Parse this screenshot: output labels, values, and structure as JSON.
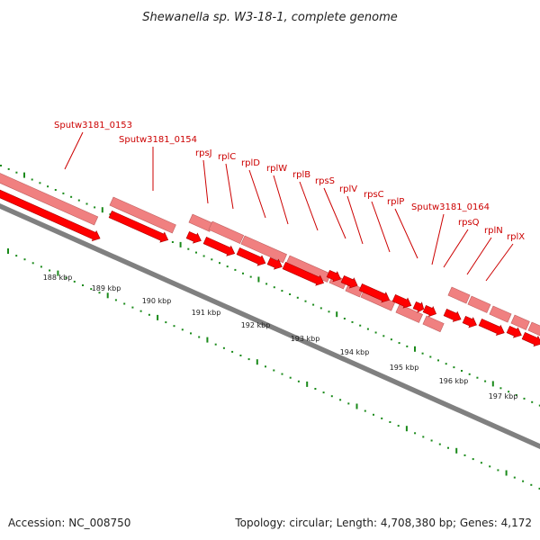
{
  "title": "Shewanella sp. W3-18-1, complete genome",
  "footer": {
    "accession": "Accession: NC_008750",
    "topology": "Topology: circular; Length: 4,708,380 bp; Genes: 4,172"
  },
  "colors": {
    "gene_fill": "#ff0000",
    "gene_edge": "#aa0000",
    "cds_fill": "#f08080",
    "cds_edge": "#c06060",
    "backbone": "#808080",
    "tick": "#1a8a1a",
    "label": "#cc0000"
  },
  "scale": {
    "labels": [
      "188 kbp",
      "189 kbp",
      "190 kbp",
      "191 kbp",
      "192 kbp",
      "193 kbp",
      "194 kbp",
      "195 kbp",
      "196 kbp",
      "197 kbp"
    ]
  },
  "genes": [
    "Sputw3181_0153",
    "Sputw3181_0154",
    "rpsJ",
    "rplC",
    "rplD",
    "rplW",
    "rplB",
    "rpsS",
    "rplV",
    "rpsC",
    "rplP",
    "Sputw3181_0164",
    "rpsQ",
    "rplN",
    "rplX"
  ]
}
